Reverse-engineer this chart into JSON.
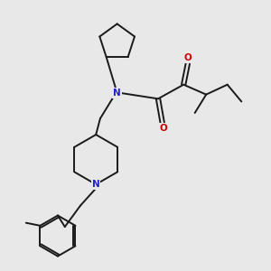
{
  "bg_color": "#e8e8e8",
  "bond_color": "#1a1a1a",
  "N_color": "#2222cc",
  "O_color": "#cc0000",
  "bond_width": 1.4,
  "figsize": [
    3.0,
    3.0
  ],
  "dpi": 100,
  "xlim": [
    0,
    10
  ],
  "ylim": [
    0,
    10
  ]
}
